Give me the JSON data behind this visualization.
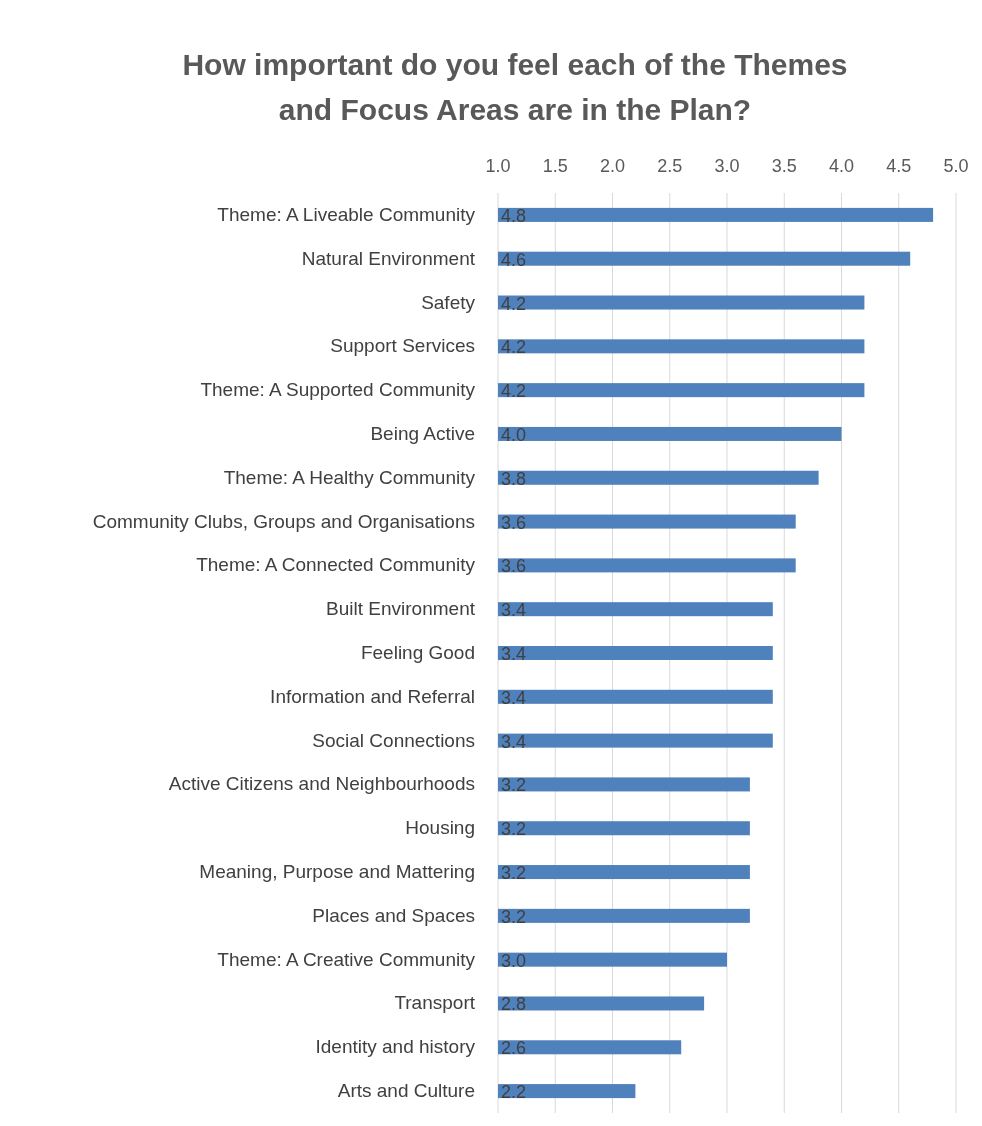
{
  "chart_data": {
    "type": "bar",
    "orientation": "horizontal",
    "title": "How important do you feel each of the Themes and Focus Areas are in the Plan?",
    "categories": [
      "Theme: A Liveable Community",
      "Natural Environment",
      "Safety",
      "Support Services",
      "Theme: A Supported Community",
      "Being Active",
      "Theme: A Healthy Community",
      "Community Clubs, Groups and Organisations",
      "Theme: A Connected Community",
      "Built Environment",
      "Feeling Good",
      "Information and Referral",
      "Social Connections",
      "Active Citizens and Neighbourhoods",
      "Housing",
      "Meaning, Purpose and Mattering",
      "Places and Spaces",
      "Theme: A Creative Community",
      "Transport",
      "Identity and history",
      "Arts and Culture"
    ],
    "values": [
      4.8,
      4.6,
      4.2,
      4.2,
      4.2,
      4.0,
      3.8,
      3.6,
      3.6,
      3.4,
      3.4,
      3.4,
      3.4,
      3.2,
      3.2,
      3.2,
      3.2,
      3.0,
      2.8,
      2.6,
      2.2
    ],
    "value_labels": [
      "4.8",
      "4.6",
      "4.2",
      "4.2",
      "4.2",
      "4.0",
      "3.8",
      "3.6",
      "3.6",
      "3.4",
      "3.4",
      "3.4",
      "3.4",
      "3.2",
      "3.2",
      "3.2",
      "3.2",
      "3.0",
      "2.8",
      "2.6",
      "2.2"
    ],
    "color": "#4f81bd",
    "xlim": [
      1,
      5
    ],
    "xticks": [
      {
        "value": 1,
        "label": "1.0"
      },
      {
        "value": 1.5,
        "label": "1.5"
      },
      {
        "value": 2,
        "label": "2.0"
      },
      {
        "value": 2.5,
        "label": "2.5"
      },
      {
        "value": 3,
        "label": "3.0"
      },
      {
        "value": 3.5,
        "label": "3.5"
      },
      {
        "value": 4,
        "label": "4.0"
      },
      {
        "value": 4.5,
        "label": "4.5"
      },
      {
        "value": 5,
        "label": "5.0"
      }
    ],
    "grid": "x"
  }
}
